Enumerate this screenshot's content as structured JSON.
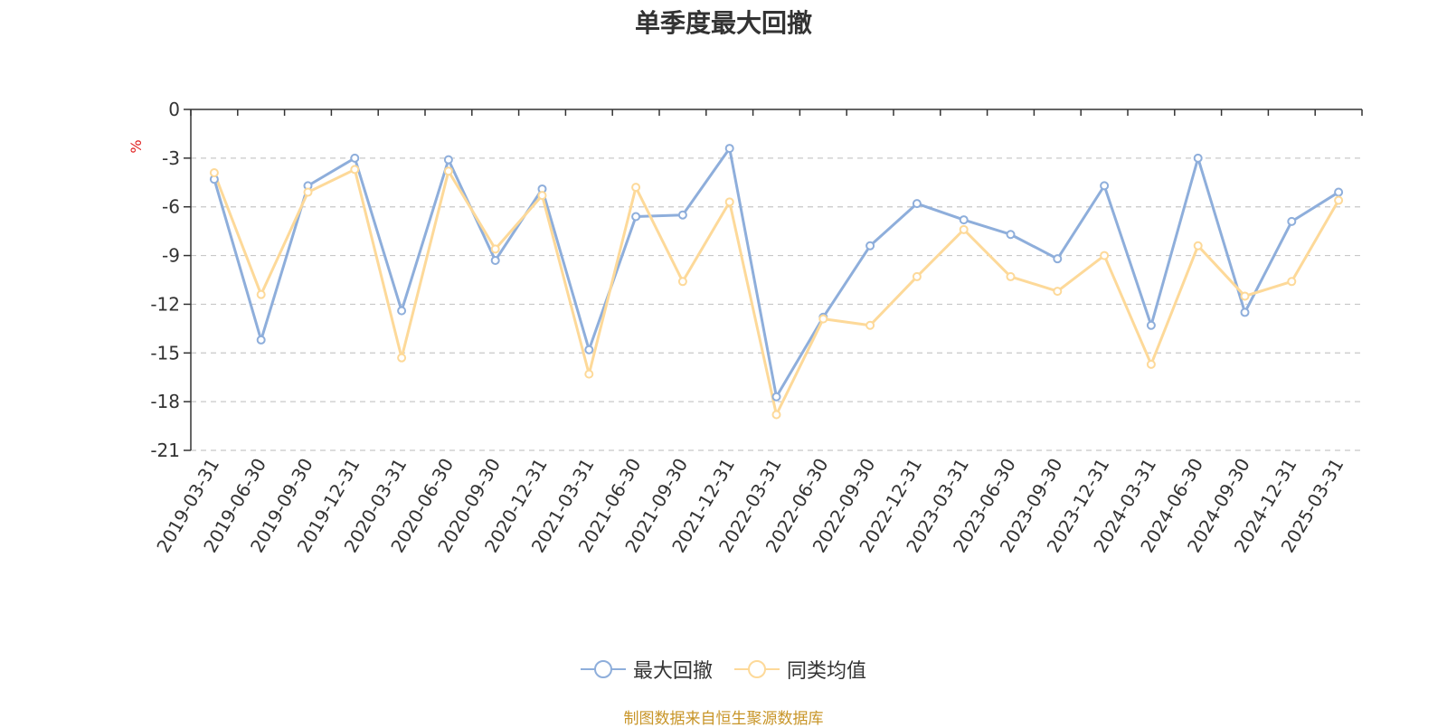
{
  "colors": {
    "series1": "#8eaedb",
    "series2": "#fdd999",
    "unit": "#e02020",
    "source": "#c89528",
    "grid": "#c8c8c8",
    "axis": "#333333"
  },
  "legend": {
    "item1": "最大回撤",
    "item2": "同类均值"
  },
  "source_note": "制图数据来自恒生聚源数据库",
  "chart_data": {
    "type": "line",
    "title": "单季度最大回撤",
    "ylabel": "%",
    "ylim": [
      -21,
      0
    ],
    "yticks": [
      0,
      -3,
      -6,
      -9,
      -12,
      -15,
      -18,
      -21
    ],
    "grid": true,
    "legend_position": "bottom",
    "categories": [
      "2019-03-31",
      "2019-06-30",
      "2019-09-30",
      "2019-12-31",
      "2020-03-31",
      "2020-06-30",
      "2020-09-30",
      "2020-12-31",
      "2021-03-31",
      "2021-06-30",
      "2021-09-30",
      "2021-12-31",
      "2022-03-31",
      "2022-06-30",
      "2022-09-30",
      "2022-12-31",
      "2023-03-31",
      "2023-06-30",
      "2023-09-30",
      "2023-12-31",
      "2024-03-31",
      "2024-06-30",
      "2024-09-30",
      "2024-12-31",
      "2025-03-31"
    ],
    "series": [
      {
        "name": "最大回撤",
        "values": [
          -4.3,
          -14.2,
          -4.7,
          -3.0,
          -12.4,
          -3.1,
          -9.3,
          -4.9,
          -14.8,
          -6.6,
          -6.5,
          -2.4,
          -17.7,
          -12.8,
          -8.4,
          -5.8,
          -6.8,
          -7.7,
          -9.2,
          -4.7,
          -13.3,
          -3.0,
          -12.5,
          -6.9,
          -5.1
        ]
      },
      {
        "name": "同类均值",
        "values": [
          -3.9,
          -11.4,
          -5.1,
          -3.7,
          -15.3,
          -3.8,
          -8.6,
          -5.3,
          -16.3,
          -4.8,
          -10.6,
          -5.7,
          -18.8,
          -12.9,
          -13.3,
          -10.3,
          -7.4,
          -10.3,
          -11.2,
          -9.0,
          -15.7,
          -8.4,
          -11.5,
          -10.6,
          -5.6
        ]
      }
    ]
  }
}
